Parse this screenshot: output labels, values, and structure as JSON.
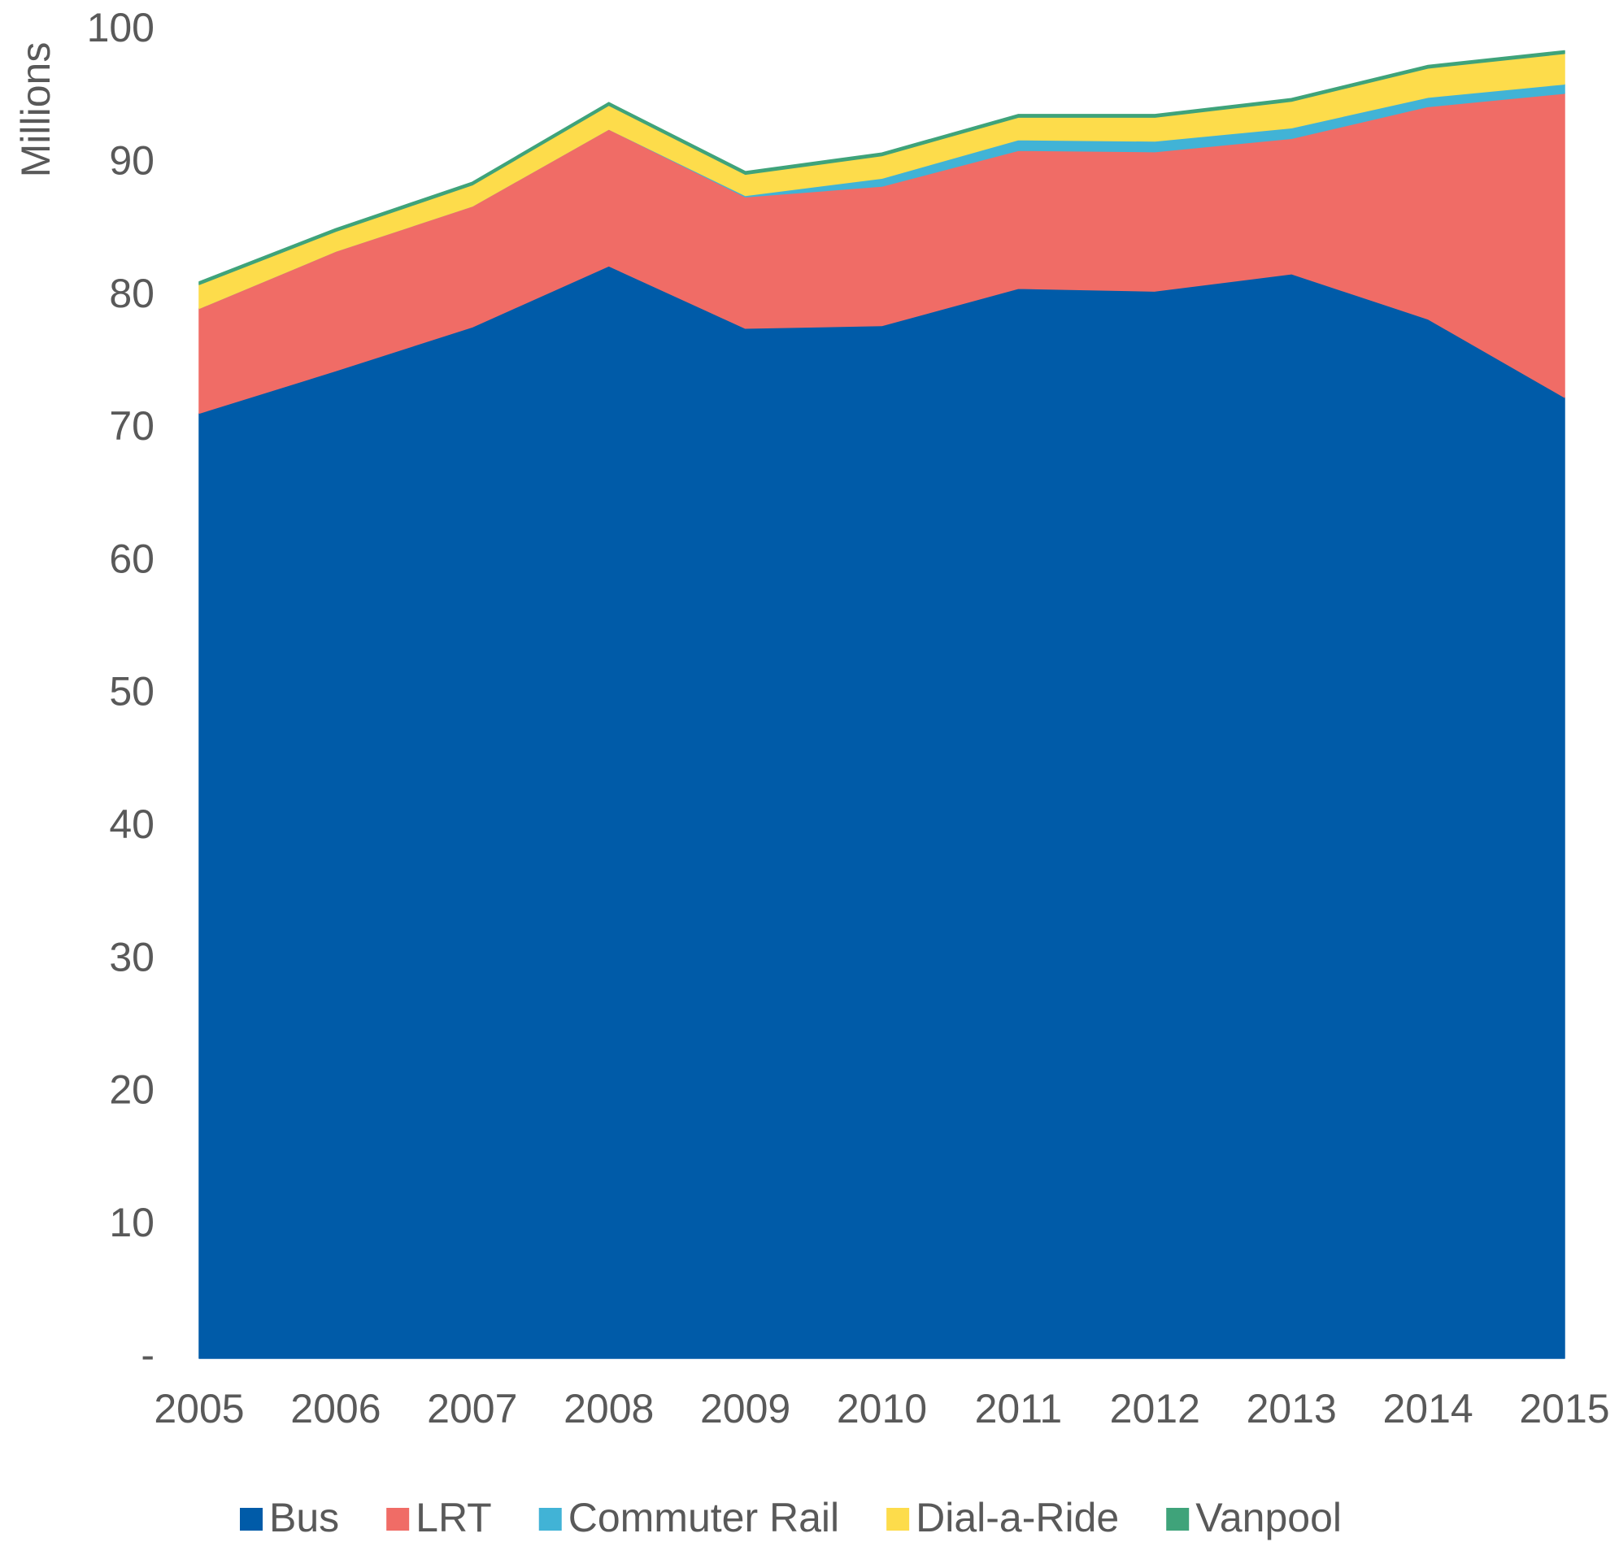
{
  "chart_data": {
    "type": "stacked_area",
    "y_label": "Millions",
    "categories": [
      "2005",
      "2006",
      "2007",
      "2008",
      "2009",
      "2010",
      "2011",
      "2012",
      "2013",
      "2014",
      "2015"
    ],
    "series": [
      {
        "name": "Bus",
        "color": "#005ba8",
        "values": [
          71.2,
          74.4,
          77.7,
          82.3,
          77.6,
          77.8,
          80.6,
          80.4,
          81.7,
          78.3,
          72.4
        ]
      },
      {
        "name": "LRT",
        "color": "#f06c66",
        "values": [
          7.9,
          9.0,
          9.1,
          10.3,
          9.9,
          10.5,
          10.4,
          10.5,
          10.2,
          16.0,
          22.9
        ]
      },
      {
        "name": "Commuter Rail",
        "color": "#41b3d6",
        "values": [
          0,
          0,
          0,
          0,
          0.1,
          0.6,
          0.8,
          0.8,
          0.8,
          0.7,
          0.7
        ]
      },
      {
        "name": "Dial-a-Ride",
        "color": "#fddc4b",
        "values": [
          1.8,
          1.5,
          1.6,
          1.8,
          1.6,
          1.7,
          1.7,
          1.8,
          2.0,
          2.2,
          2.3
        ]
      },
      {
        "name": "Vanpool",
        "color": "#3fa37a",
        "values": [
          0.2,
          0.2,
          0.2,
          0.2,
          0.2,
          0.2,
          0.2,
          0.2,
          0.2,
          0.2,
          0.2
        ]
      }
    ],
    "ylim": [
      0,
      100
    ],
    "yticks": [
      {
        "value": 0,
        "label": "-"
      },
      10,
      20,
      30,
      40,
      50,
      60,
      70,
      80,
      90,
      100
    ],
    "grid": false,
    "legend": "bottom"
  }
}
